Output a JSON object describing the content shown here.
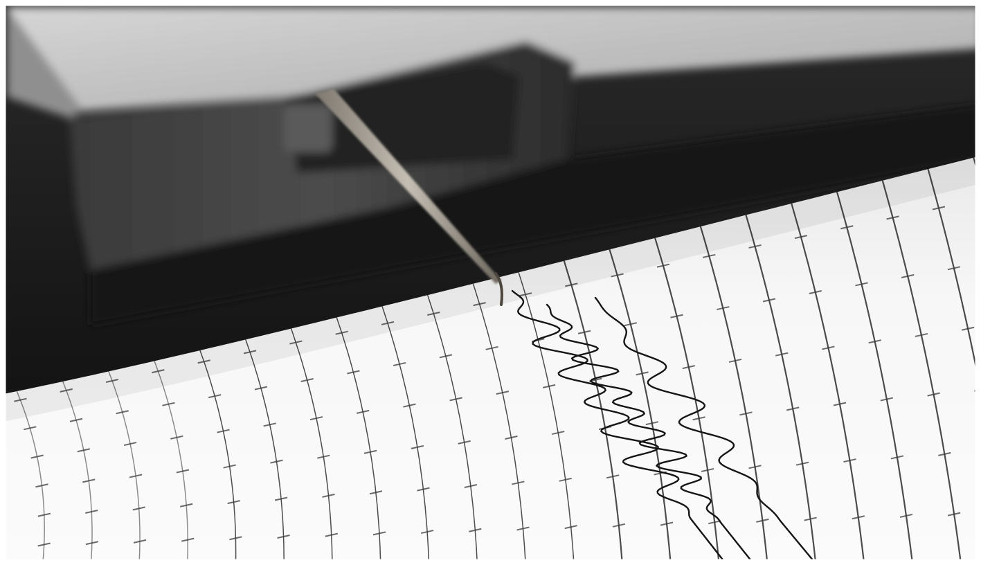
{
  "image": {
    "subject": "seismograph",
    "colors": {
      "frame": "#ffffff",
      "background_dark": "#1c1c1c",
      "housing_light": "#c9c9c9",
      "paper": "#f4f4f4",
      "grid_line": "#2a2a2a",
      "tick_mark": "#3a3a3a",
      "trace": "#151515",
      "needle": "#9a948a"
    }
  }
}
